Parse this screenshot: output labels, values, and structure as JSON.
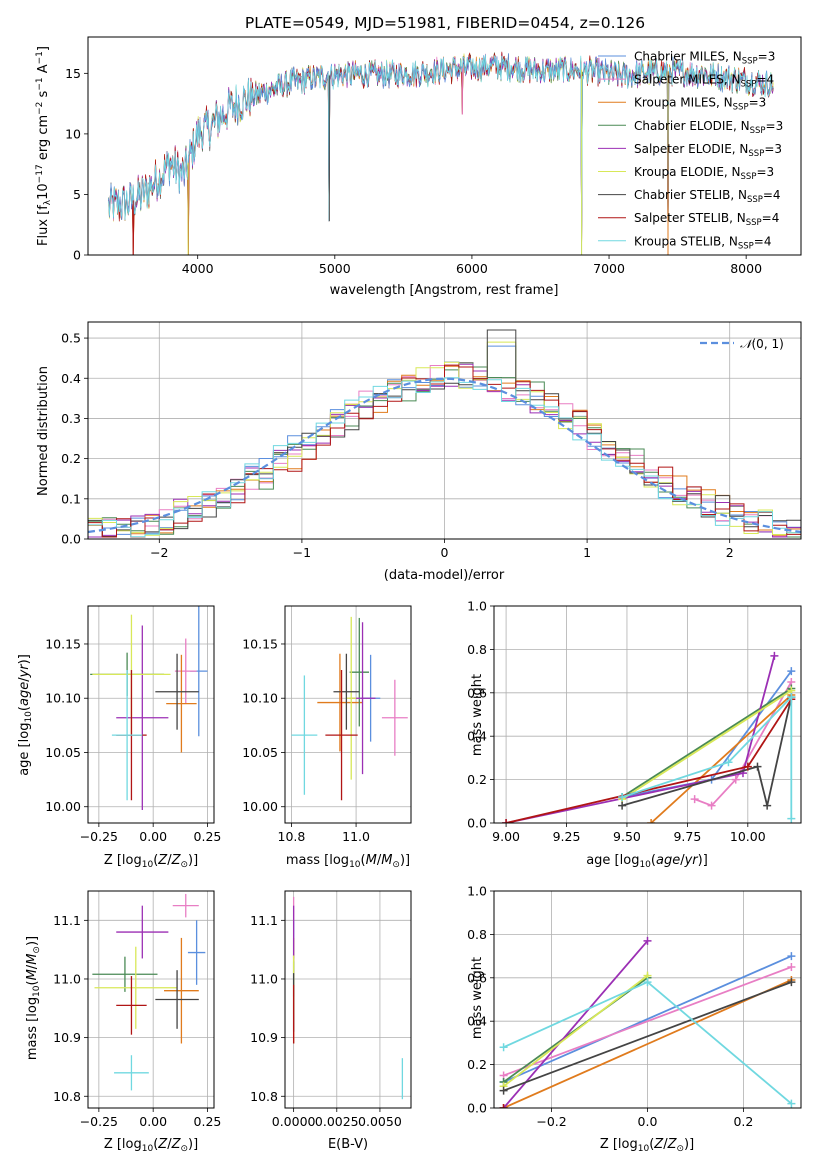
{
  "colors": {
    "Chabrier MILES": "#5b8fde",
    "Salpeter MILES": "#e87ec4",
    "Kroupa MILES": "#e07b1d",
    "Chabrier ELODIE": "#4a8a55",
    "Salpeter ELODIE": "#9b2fb4",
    "Kroupa ELODIE": "#d8e858",
    "Chabrier STELIB": "#444444",
    "Salpeter STELIB": "#b01515",
    "Kroupa STELIB": "#70d8e0"
  },
  "chart_data": [
    {
      "id": "spectrum",
      "type": "line",
      "title": "PLATE=0549, MJD=51981, FIBERID=0454, z=0.126",
      "xlabel": "wavelength [Angstrom, rest frame]",
      "ylabel": "Flux [f_λ 10^-17 erg cm^-2 s^-1 A^-1]",
      "xlim": [
        3200,
        8400
      ],
      "ylim": [
        0,
        18
      ],
      "xticks": [
        4000,
        5000,
        6000,
        7000,
        8000
      ],
      "yticks": [
        0,
        5,
        10,
        15
      ],
      "grid": false,
      "legend_position": "right",
      "legend": [
        "Chabrier MILES, N_SSP=3",
        "Salpeter MILES, N_SSP=4",
        "Kroupa MILES, N_SSP=3",
        "Chabrier ELODIE, N_SSP=3",
        "Salpeter ELODIE, N_SSP=3",
        "Kroupa ELODIE, N_SSP=3",
        "Chabrier STELIB, N_SSP=4",
        "Salpeter STELIB, N_SSP=4",
        "Kroupa STELIB, N_SSP=4"
      ],
      "data_envelope": {
        "x": [
          3350,
          3500,
          3600,
          3700,
          3800,
          3900,
          4000,
          4100,
          4200,
          4300,
          4500,
          4700,
          5000,
          5300,
          5600,
          5900,
          6200,
          6500,
          6800,
          7100,
          7400,
          7700,
          8000,
          8200
        ],
        "y": [
          4.0,
          4.3,
          5.0,
          6.2,
          7.6,
          6.6,
          10.0,
          10.6,
          11.8,
          12.6,
          13.5,
          14.3,
          14.9,
          14.9,
          15.0,
          15.4,
          15.6,
          15.2,
          15.3,
          14.8,
          15.2,
          14.9,
          14.4,
          14.0
        ]
      },
      "dips": [
        {
          "x": 3530,
          "y": 0
        },
        {
          "x": 3930,
          "y": 0
        },
        {
          "x": 4960,
          "y": 2.8
        },
        {
          "x": 5930,
          "y": 11.6
        },
        {
          "x": 6800,
          "y": 0
        },
        {
          "x": 7430,
          "y": 0
        }
      ]
    },
    {
      "id": "residuals",
      "type": "histogram",
      "xlabel": "(data-model)/error",
      "ylabel": "Normed distribution",
      "xlim": [
        -2.5,
        2.5
      ],
      "ylim": [
        0,
        0.54
      ],
      "xticks": [
        -2,
        -1,
        0,
        1,
        2
      ],
      "yticks": [
        0.0,
        0.1,
        0.2,
        0.3,
        0.4,
        0.5
      ],
      "grid": true,
      "legend_position": "top-right",
      "reference_curve": {
        "name": "N(0,1)",
        "mean": 0,
        "sigma": 1,
        "style": "dashed"
      },
      "bin_width": 0.1,
      "peak_at": 0.4,
      "peak_values": {
        "Chabrier STELIB": 0.52,
        "Kroupa ELODIE": 0.49,
        "Chabrier MILES": 0.48
      }
    },
    {
      "id": "age-vs-Z",
      "type": "scatter",
      "xlabel": "Z [log10(Z/Z⊙)]",
      "ylabel": "age [log10(age/yr)]",
      "xlim": [
        -0.3,
        0.28
      ],
      "ylim": [
        9.985,
        10.185
      ],
      "xticks": [
        -0.25,
        0.0,
        0.25
      ],
      "yticks": [
        10.0,
        10.05,
        10.1,
        10.15
      ],
      "grid": true,
      "points": [
        {
          "series": "Chabrier MILES",
          "x": 0.21,
          "y": 10.125,
          "xerr": 0.04,
          "yerr": 0.06
        },
        {
          "series": "Salpeter MILES",
          "x": 0.15,
          "y": 10.125,
          "xerr": 0.05,
          "yerr": 0.03
        },
        {
          "series": "Kroupa MILES",
          "x": 0.13,
          "y": 10.095,
          "xerr": 0.07,
          "yerr": 0.045
        },
        {
          "series": "Chabrier ELODIE",
          "x": -0.12,
          "y": 10.122,
          "xerr": 0.17,
          "yerr": 0.02
        },
        {
          "series": "Salpeter ELODIE",
          "x": -0.05,
          "y": 10.082,
          "xerr": 0.12,
          "yerr": 0.085
        },
        {
          "series": "Kroupa ELODIE",
          "x": -0.1,
          "y": 10.122,
          "xerr": 0.18,
          "yerr": 0.055
        },
        {
          "series": "Chabrier STELIB",
          "x": 0.11,
          "y": 10.106,
          "xerr": 0.1,
          "yerr": 0.035
        },
        {
          "series": "Salpeter STELIB",
          "x": -0.1,
          "y": 10.066,
          "xerr": 0.07,
          "yerr": 0.06
        },
        {
          "series": "Kroupa STELIB",
          "x": -0.12,
          "y": 10.066,
          "xerr": 0.07,
          "yerr": 0.06
        }
      ]
    },
    {
      "id": "age-vs-mass",
      "type": "scatter",
      "xlabel": "mass [log10(M/M⊙)]",
      "ylim": [
        9.985,
        10.185
      ],
      "xlim": [
        10.78,
        11.17
      ],
      "xticks": [
        10.8,
        11.0
      ],
      "yticks": [
        10.0,
        10.05,
        10.1,
        10.15
      ],
      "grid": true,
      "points": [
        {
          "series": "Chabrier MILES",
          "x": 11.045,
          "y": 10.1,
          "xerr": 0.03,
          "yerr": 0.04
        },
        {
          "series": "Salpeter MILES",
          "x": 11.12,
          "y": 10.082,
          "xerr": 0.04,
          "yerr": 0.035
        },
        {
          "series": "Kroupa MILES",
          "x": 10.95,
          "y": 10.096,
          "xerr": 0.07,
          "yerr": 0.045
        },
        {
          "series": "Chabrier ELODIE",
          "x": 11.01,
          "y": 10.124,
          "xerr": 0.03,
          "yerr": 0.05
        },
        {
          "series": "Salpeter ELODIE",
          "x": 11.02,
          "y": 10.1,
          "xerr": 0.04,
          "yerr": 0.07
        },
        {
          "series": "Kroupa ELODIE",
          "x": 10.985,
          "y": 10.1,
          "xerr": 0.015,
          "yerr": 0.075
        },
        {
          "series": "Chabrier STELIB",
          "x": 10.97,
          "y": 10.106,
          "xerr": 0.04,
          "yerr": 0.035
        },
        {
          "series": "Salpeter STELIB",
          "x": 10.955,
          "y": 10.066,
          "xerr": 0.05,
          "yerr": 0.06
        },
        {
          "series": "Kroupa STELIB",
          "x": 10.84,
          "y": 10.066,
          "xerr": 0.04,
          "yerr": 0.055
        }
      ]
    },
    {
      "id": "mass-weight-vs-age",
      "type": "line",
      "xlabel": "age [log10(age/yr)]",
      "ylabel": "mass weight",
      "xlim": [
        8.95,
        10.22
      ],
      "ylim": [
        0,
        1
      ],
      "xticks": [
        9.0,
        9.25,
        9.5,
        9.75,
        10.0
      ],
      "yticks": [
        0.0,
        0.2,
        0.4,
        0.6,
        0.8,
        1.0
      ],
      "grid": true,
      "series": [
        {
          "name": "Chabrier MILES",
          "x": [
            9.48,
            9.85,
            10.18
          ],
          "y": [
            0.12,
            0.2,
            0.7
          ]
        },
        {
          "name": "Salpeter MILES",
          "x": [
            9.78,
            9.85,
            9.95,
            10.18
          ],
          "y": [
            0.11,
            0.08,
            0.2,
            0.65
          ]
        },
        {
          "name": "Kroupa MILES",
          "x": [
            9.6,
            10.18
          ],
          "y": [
            0.0,
            0.59
          ]
        },
        {
          "name": "Chabrier ELODIE",
          "x": [
            9.48,
            10.18
          ],
          "y": [
            0.12,
            0.62
          ]
        },
        {
          "name": "Salpeter ELODIE",
          "x": [
            9.0,
            9.98,
            10.11
          ],
          "y": [
            0.0,
            0.23,
            0.77
          ]
        },
        {
          "name": "Kroupa ELODIE",
          "x": [
            9.48,
            10.18
          ],
          "y": [
            0.11,
            0.61
          ]
        },
        {
          "name": "Chabrier STELIB",
          "x": [
            9.48,
            10.04,
            10.08,
            10.18
          ],
          "y": [
            0.08,
            0.26,
            0.08,
            0.58
          ]
        },
        {
          "name": "Salpeter STELIB",
          "x": [
            9.0,
            10.0,
            10.18
          ],
          "y": [
            0.0,
            0.26,
            0.57
          ]
        },
        {
          "name": "Kroupa STELIB",
          "x": [
            9.48,
            9.92,
            10.18,
            10.18
          ],
          "y": [
            0.12,
            0.28,
            0.58,
            0.02
          ]
        }
      ]
    },
    {
      "id": "mass-vs-Z",
      "type": "scatter",
      "xlabel": "Z [log10(Z/Z⊙)]",
      "ylabel": "mass [log10(M/M⊙)]",
      "xlim": [
        -0.3,
        0.28
      ],
      "ylim": [
        10.78,
        11.15
      ],
      "xticks": [
        -0.25,
        0.0,
        0.25
      ],
      "yticks": [
        10.8,
        10.9,
        11.0,
        11.1
      ],
      "grid": true,
      "points": [
        {
          "series": "Chabrier MILES",
          "x": 0.2,
          "y": 11.045,
          "xerr": 0.04,
          "yerr": 0.055
        },
        {
          "series": "Salpeter MILES",
          "x": 0.15,
          "y": 11.125,
          "xerr": 0.06,
          "yerr": 0.02
        },
        {
          "series": "Kroupa MILES",
          "x": 0.13,
          "y": 10.98,
          "xerr": 0.08,
          "yerr": 0.09
        },
        {
          "series": "Chabrier ELODIE",
          "x": -0.13,
          "y": 11.008,
          "xerr": 0.15,
          "yerr": 0.03
        },
        {
          "series": "Salpeter ELODIE",
          "x": -0.05,
          "y": 11.08,
          "xerr": 0.12,
          "yerr": 0.045
        },
        {
          "series": "Kroupa ELODIE",
          "x": -0.08,
          "y": 10.985,
          "xerr": 0.19,
          "yerr": 0.07
        },
        {
          "series": "Chabrier STELIB",
          "x": 0.11,
          "y": 10.965,
          "xerr": 0.1,
          "yerr": 0.05
        },
        {
          "series": "Salpeter STELIB",
          "x": -0.1,
          "y": 10.955,
          "xerr": 0.07,
          "yerr": 0.05
        },
        {
          "series": "Kroupa STELIB",
          "x": -0.1,
          "y": 10.84,
          "xerr": 0.08,
          "yerr": 0.03
        }
      ]
    },
    {
      "id": "mass-vs-ebv",
      "type": "scatter",
      "xlabel": "E(B-V)",
      "xlim": [
        -0.0005,
        0.0068
      ],
      "ylim": [
        10.78,
        11.15
      ],
      "xticks": [
        0.0,
        0.0025,
        0.005
      ],
      "xticklabels": [
        "0.0000",
        "0.0025",
        "0.0050"
      ],
      "yticks": [
        10.8,
        10.9,
        11.0,
        11.1
      ],
      "grid": true,
      "points": [
        {
          "series": "Chabrier MILES",
          "x": 0.0,
          "y": 11.045,
          "yerr": 0.055
        },
        {
          "series": "Salpeter MILES",
          "x": 0.0,
          "y": 11.12,
          "yerr": 0.02
        },
        {
          "series": "Kroupa MILES",
          "x": 0.0,
          "y": 10.98,
          "yerr": 0.09
        },
        {
          "series": "Chabrier ELODIE",
          "x": 0.0,
          "y": 11.0,
          "yerr": 0.03
        },
        {
          "series": "Salpeter ELODIE",
          "x": 0.0,
          "y": 11.08,
          "yerr": 0.045
        },
        {
          "series": "Kroupa ELODIE",
          "x": 0.0,
          "y": 10.99,
          "yerr": 0.05
        },
        {
          "series": "Chabrier STELIB",
          "x": 0.0,
          "y": 10.96,
          "yerr": 0.05
        },
        {
          "series": "Salpeter STELIB",
          "x": 0.0,
          "y": 10.94,
          "yerr": 0.05
        },
        {
          "series": "Kroupa STELIB",
          "x": 0.0063,
          "y": 10.83,
          "yerr": 0.035
        }
      ]
    },
    {
      "id": "mass-weight-vs-Z",
      "type": "line",
      "xlabel": "Z [log10(Z/Z⊙)]",
      "ylabel": "mass weight",
      "xlim": [
        -0.32,
        0.32
      ],
      "ylim": [
        0,
        1
      ],
      "xticks": [
        -0.2,
        0.0,
        0.2
      ],
      "yticks": [
        0.0,
        0.2,
        0.4,
        0.6,
        0.8,
        1.0
      ],
      "grid": true,
      "series": [
        {
          "name": "Chabrier MILES",
          "x": [
            -0.3,
            0.3
          ],
          "y": [
            0.12,
            0.7
          ]
        },
        {
          "name": "Salpeter MILES",
          "x": [
            -0.3,
            0.3
          ],
          "y": [
            0.15,
            0.65
          ]
        },
        {
          "name": "Kroupa MILES",
          "x": [
            -0.3,
            0.3
          ],
          "y": [
            0.0,
            0.59
          ]
        },
        {
          "name": "Chabrier ELODIE",
          "x": [
            -0.3,
            0.0
          ],
          "y": [
            0.12,
            0.6
          ]
        },
        {
          "name": "Salpeter ELODIE",
          "x": [
            -0.3,
            0.0
          ],
          "y": [
            0.0,
            0.77
          ]
        },
        {
          "name": "Kroupa ELODIE",
          "x": [
            -0.3,
            0.0
          ],
          "y": [
            0.1,
            0.61
          ]
        },
        {
          "name": "Chabrier STELIB",
          "x": [
            -0.3,
            0.3
          ],
          "y": [
            0.08,
            0.58
          ]
        },
        {
          "name": "Salpeter STELIB",
          "x": [
            -0.3
          ],
          "y": [
            0.0
          ]
        },
        {
          "name": "Kroupa STELIB",
          "x": [
            -0.3,
            0.0,
            0.3
          ],
          "y": [
            0.28,
            0.58,
            0.02
          ]
        }
      ]
    }
  ]
}
